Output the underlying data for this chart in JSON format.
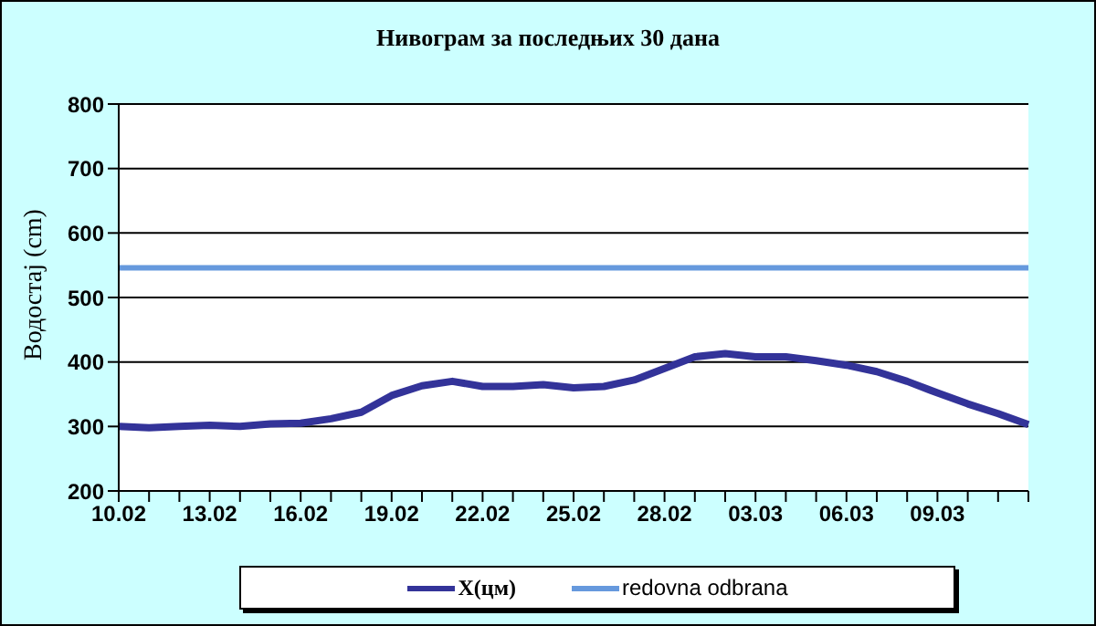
{
  "chart_data": {
    "type": "line",
    "title": "Нивограм за последњих 30 дана",
    "ylabel": "Водостај (cm)",
    "categories": [
      "10.02",
      null,
      null,
      "13.02",
      null,
      null,
      "16.02",
      null,
      null,
      "19.02",
      null,
      null,
      "22.02",
      null,
      null,
      "25.02",
      null,
      null,
      "28.02",
      null,
      null,
      "03.03",
      null,
      null,
      "06.03",
      null,
      null,
      "09.03",
      null,
      null,
      null
    ],
    "series": [
      {
        "name": "X(цм)",
        "color": "#333399",
        "values": [
          300,
          298,
          300,
          302,
          300,
          304,
          305,
          312,
          322,
          348,
          363,
          370,
          362,
          362,
          365,
          360,
          362,
          372,
          390,
          408,
          413,
          408,
          408,
          402,
          395,
          385,
          370,
          352,
          335,
          320,
          303
        ]
      }
    ],
    "ref_lines": [
      {
        "axis": "y",
        "value": 546,
        "label": "redovna odbrana",
        "color": "#6699dd"
      }
    ],
    "ylim": [
      200,
      800
    ],
    "yticks": [
      200,
      300,
      400,
      500,
      600,
      700,
      800
    ],
    "grid": "y",
    "legend": "bottom",
    "marker": "none",
    "line_style": "solid"
  }
}
